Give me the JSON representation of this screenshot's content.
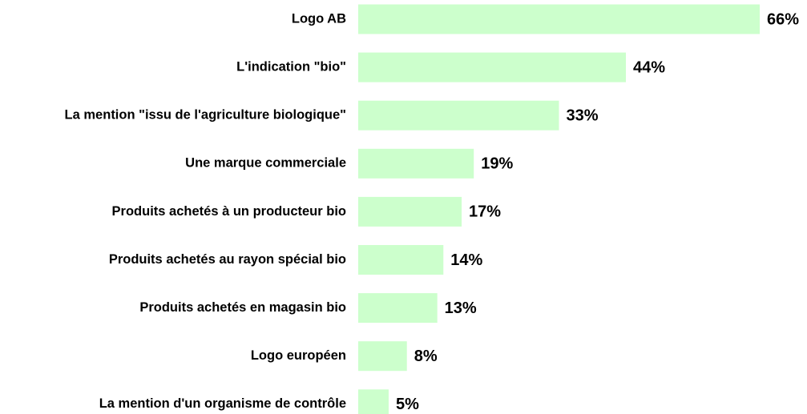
{
  "chart_data": {
    "type": "barh",
    "categories": [
      "Logo AB",
      "L'indication \"bio\"",
      "La mention \"issu de l'agriculture biologique\"",
      "Une marque commerciale",
      "Produits achetés à un producteur bio",
      "Produits achetés au rayon spécial bio",
      "Produits achetés en magasin bio",
      "Logo européen",
      "La mention d'un organisme de contrôle"
    ],
    "values": [
      66,
      44,
      33,
      19,
      17,
      14,
      13,
      8,
      5
    ],
    "value_labels": [
      "66%",
      "44%",
      "33%",
      "19%",
      "17%",
      "14%",
      "13%",
      "8%",
      "5%"
    ],
    "color": "#ccffcc"
  }
}
